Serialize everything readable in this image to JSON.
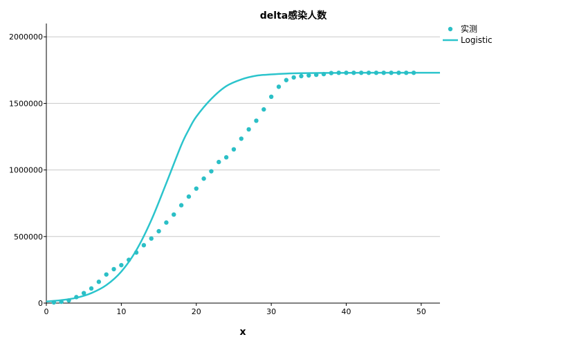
{
  "chart_data": {
    "type": "scatter",
    "title": "delta感染人数",
    "xlabel": "x",
    "ylabel": "",
    "xlim": [
      0,
      52.5
    ],
    "ylim": [
      0,
      2100000
    ],
    "xticks": [
      0,
      10,
      20,
      30,
      40,
      50
    ],
    "yticks": [
      0,
      500000,
      1000000,
      1500000,
      2000000
    ],
    "grid": "horizontal",
    "legend_placement": "top-right",
    "series": [
      {
        "name": "实测",
        "kind": "scatter",
        "color": "#2bbfc6",
        "x": [
          1,
          2,
          3,
          4,
          5,
          6,
          7,
          8,
          9,
          10,
          11,
          12,
          13,
          14,
          15,
          16,
          17,
          18,
          19,
          20,
          21,
          22,
          23,
          24,
          25,
          26,
          27,
          28,
          29,
          30,
          31,
          32,
          33,
          34,
          35,
          36,
          37,
          38,
          39,
          40,
          41,
          42,
          43,
          44,
          45,
          46,
          47,
          48,
          49
        ],
        "y": [
          5000,
          10000,
          20000,
          45000,
          75000,
          110000,
          160000,
          215000,
          255000,
          285000,
          325000,
          380000,
          435000,
          485000,
          540000,
          605000,
          665000,
          735000,
          800000,
          860000,
          935000,
          990000,
          1060000,
          1095000,
          1155000,
          1235000,
          1305000,
          1370000,
          1455000,
          1550000,
          1625000,
          1675000,
          1695000,
          1705000,
          1710000,
          1715000,
          1720000,
          1728000,
          1730000,
          1730000,
          1730000,
          1730000,
          1730000,
          1730000,
          1730000,
          1730000,
          1730000,
          1730000,
          1730000
        ]
      },
      {
        "name": "Logistic",
        "kind": "line",
        "color": "#2bc4cc",
        "x": [
          0,
          2,
          4,
          6,
          8,
          10,
          12,
          14,
          16,
          18,
          19,
          20,
          22,
          24,
          26,
          28,
          30,
          32,
          34,
          36,
          38,
          40,
          42,
          44,
          46,
          48,
          50,
          52.5
        ],
        "y": [
          12000,
          22000,
          40000,
          75000,
          135000,
          237000,
          397000,
          623000,
          901000,
          1187000,
          1303000,
          1400000,
          1534000,
          1630000,
          1680000,
          1708000,
          1718000,
          1724000,
          1727000,
          1728500,
          1729000,
          1729500,
          1730000,
          1730000,
          1730000,
          1730000,
          1730000,
          1730000
        ]
      }
    ]
  }
}
